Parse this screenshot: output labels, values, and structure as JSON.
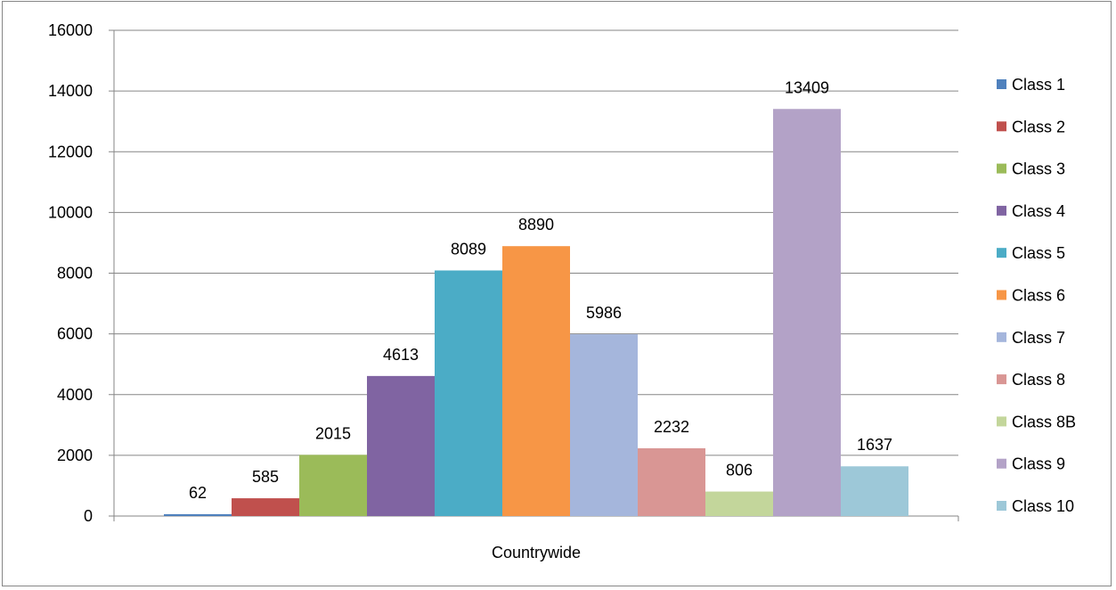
{
  "chart_data": {
    "type": "bar",
    "categories": [
      "Countrywide"
    ],
    "series": [
      {
        "name": "Class 1",
        "values": [
          62
        ],
        "color": "#4F81BD"
      },
      {
        "name": "Class 2",
        "values": [
          585
        ],
        "color": "#C0504D"
      },
      {
        "name": "Class 3",
        "values": [
          2015
        ],
        "color": "#9BBB59"
      },
      {
        "name": "Class 4",
        "values": [
          4613
        ],
        "color": "#8064A2"
      },
      {
        "name": "Class 5",
        "values": [
          8089
        ],
        "color": "#4BACC6"
      },
      {
        "name": "Class 6",
        "values": [
          8890
        ],
        "color": "#F79646"
      },
      {
        "name": "Class 7",
        "values": [
          5986
        ],
        "color": "#A5B6DC"
      },
      {
        "name": "Class 8",
        "values": [
          2232
        ],
        "color": "#D99694"
      },
      {
        "name": "Class 8B",
        "values": [
          806
        ],
        "color": "#C3D69B"
      },
      {
        "name": "Class 9",
        "values": [
          13409
        ],
        "color": "#B3A2C7"
      },
      {
        "name": "Class 10",
        "values": [
          1637
        ],
        "color": "#9DC8D8"
      }
    ],
    "ylim": [
      0,
      16000
    ],
    "yticks": [
      0,
      2000,
      4000,
      6000,
      8000,
      10000,
      12000,
      14000,
      16000
    ],
    "title": "",
    "xlabel": "",
    "ylabel": "",
    "grid": true,
    "legend": "right",
    "data_labels": true
  }
}
